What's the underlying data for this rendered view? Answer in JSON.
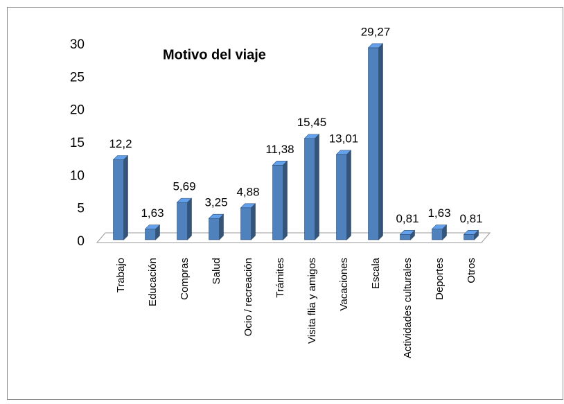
{
  "chart_data": {
    "type": "bar",
    "title": "Motivo del viaje",
    "categories": [
      "Trabajo",
      "Educación",
      "Compras",
      "Salud",
      "Ocio / recreación",
      "Trámites",
      "Visita flia y amigos",
      "Vacaciones",
      "Escala",
      "Actividades culturales",
      "Deportes",
      "Otros"
    ],
    "values": [
      12.2,
      1.63,
      5.69,
      3.25,
      4.88,
      11.38,
      15.45,
      13.01,
      29.27,
      0.81,
      1.63,
      0.81
    ],
    "value_labels": [
      "12,2",
      "1,63",
      "5,69",
      "3,25",
      "4,88",
      "11,38",
      "15,45",
      "13,01",
      "29,27",
      "0,81",
      "1,63",
      "0,81"
    ],
    "color": "#4f81bd",
    "ylim": [
      0,
      30
    ],
    "yticks": [
      0,
      5,
      10,
      15,
      20,
      25,
      30
    ],
    "grid": false
  }
}
